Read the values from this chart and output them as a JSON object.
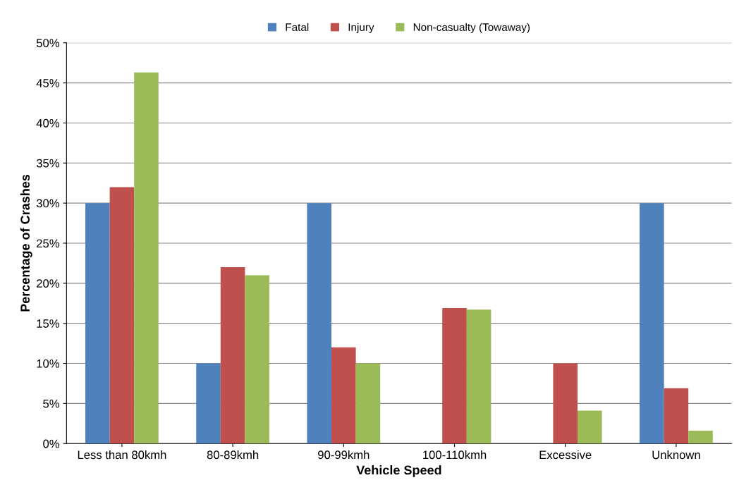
{
  "chart_data": {
    "type": "bar",
    "xlabel": "Vehicle Speed",
    "ylabel": "Percentage of Crashes",
    "categories": [
      "Less than 80kmh",
      "80-89kmh",
      "90-99kmh",
      "100-110kmh",
      "Excessive",
      "Unknown"
    ],
    "series": [
      {
        "name": "Fatal",
        "color": "#4f81bd",
        "values": [
          30,
          10,
          30,
          0,
          0,
          30
        ]
      },
      {
        "name": "Injury",
        "color": "#c0504d",
        "values": [
          32,
          22,
          12,
          16.9,
          10,
          6.9
        ]
      },
      {
        "name": "Non-casualty (Towaway)",
        "color": "#9bbb59",
        "values": [
          46.3,
          21,
          10,
          16.7,
          4.1,
          1.6
        ]
      }
    ],
    "ylim": [
      0,
      50
    ],
    "yticks": [
      {
        "value": 0,
        "label": "0%"
      },
      {
        "value": 5,
        "label": "5%"
      },
      {
        "value": 10,
        "label": "10%"
      },
      {
        "value": 15,
        "label": "15%"
      },
      {
        "value": 20,
        "label": "20%"
      },
      {
        "value": 25,
        "label": "25%"
      },
      {
        "value": 30,
        "label": "30%"
      },
      {
        "value": 35,
        "label": "35%"
      },
      {
        "value": 40,
        "label": "40%"
      },
      {
        "value": 45,
        "label": "45%"
      },
      {
        "value": 50,
        "label": "50%"
      }
    ],
    "grid": "y",
    "legend": "top"
  }
}
